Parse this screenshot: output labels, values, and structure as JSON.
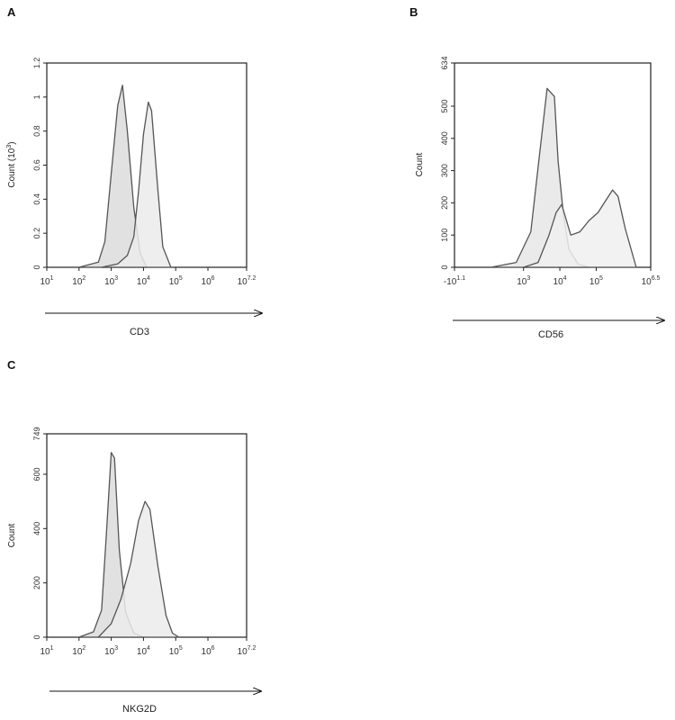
{
  "chart_data": [
    {
      "type": "area",
      "panel_letter": "A",
      "ylabel": "Count (10",
      "ylabel_sup": "3",
      "ylabel_close": ")",
      "xlabel": "CD3",
      "x_scale": "log",
      "xlim_log10": [
        1,
        7.2
      ],
      "ylim": [
        0,
        1.2
      ],
      "x_tick_labels": [
        {
          "pos": 1,
          "base": "10",
          "exp": "1"
        },
        {
          "pos": 2,
          "base": "10",
          "exp": "2"
        },
        {
          "pos": 3,
          "base": "10",
          "exp": "3"
        },
        {
          "pos": 4,
          "base": "10",
          "exp": "4"
        },
        {
          "pos": 5,
          "base": "10",
          "exp": "5"
        },
        {
          "pos": 6,
          "base": "10",
          "exp": "6"
        },
        {
          "pos": 7.2,
          "base": "10",
          "exp": "7.2"
        }
      ],
      "y_tick_labels": [
        {
          "pos": 0,
          "label": "0"
        },
        {
          "pos": 0.2,
          "label": "0.2"
        },
        {
          "pos": 0.4,
          "label": "0.4"
        },
        {
          "pos": 0.6,
          "label": "0.6"
        },
        {
          "pos": 0.8,
          "label": "0.8"
        },
        {
          "pos": 1,
          "label": "1"
        },
        {
          "pos": 1.2,
          "label": "1.2"
        }
      ],
      "series": [
        {
          "x": [
            2.0,
            2.6,
            2.8,
            3.0,
            3.2,
            3.35,
            3.5,
            3.7,
            3.9,
            4.1
          ],
          "y": [
            0,
            0.03,
            0.15,
            0.55,
            0.95,
            1.07,
            0.8,
            0.35,
            0.08,
            0
          ],
          "fill": "#dcdcdc"
        },
        {
          "x": [
            2.7,
            3.2,
            3.5,
            3.7,
            3.85,
            4.0,
            4.15,
            4.25,
            4.45,
            4.6,
            4.85
          ],
          "y": [
            0,
            0.02,
            0.07,
            0.18,
            0.45,
            0.78,
            0.97,
            0.92,
            0.45,
            0.12,
            0
          ],
          "fill": "#ebebeb"
        }
      ]
    },
    {
      "type": "area",
      "panel_letter": "B",
      "ylabel": "Count",
      "xlabel": "CD56",
      "x_scale": "log",
      "xlim_log10": [
        1.1,
        6.5
      ],
      "ylim": [
        0,
        634
      ],
      "x_tick_labels": [
        {
          "pos": 1.1,
          "base": "-10",
          "exp": "1.1"
        },
        {
          "pos": 3,
          "base": "10",
          "exp": "3"
        },
        {
          "pos": 4,
          "base": "10",
          "exp": "4"
        },
        {
          "pos": 5,
          "base": "10",
          "exp": "5"
        },
        {
          "pos": 6.5,
          "base": "10",
          "exp": "6.5"
        }
      ],
      "y_tick_labels": [
        {
          "pos": 0,
          "label": "0"
        },
        {
          "pos": 100,
          "label": "100"
        },
        {
          "pos": 200,
          "label": "200"
        },
        {
          "pos": 300,
          "label": "300"
        },
        {
          "pos": 400,
          "label": "400"
        },
        {
          "pos": 500,
          "label": "500"
        },
        {
          "pos": 634,
          "label": "634"
        }
      ],
      "series": [
        {
          "x": [
            2.1,
            2.8,
            3.2,
            3.45,
            3.65,
            3.85,
            3.95,
            4.1,
            4.25,
            4.5,
            4.8
          ],
          "y": [
            0,
            15,
            110,
            360,
            555,
            530,
            330,
            160,
            55,
            10,
            0
          ],
          "fill": "#e6e6e6"
        },
        {
          "x": [
            3.0,
            3.4,
            3.7,
            3.9,
            4.05,
            4.3,
            4.55,
            4.8,
            5.05,
            5.25,
            5.45,
            5.6,
            5.8,
            6.1
          ],
          "y": [
            0,
            15,
            100,
            170,
            195,
            100,
            110,
            145,
            170,
            205,
            240,
            220,
            120,
            0
          ],
          "fill": "#f0f0f0"
        }
      ]
    },
    {
      "type": "area",
      "panel_letter": "C",
      "ylabel": "Count",
      "xlabel": "NKG2D",
      "x_scale": "log",
      "xlim_log10": [
        1,
        7.2
      ],
      "ylim": [
        0,
        749
      ],
      "x_tick_labels": [
        {
          "pos": 1,
          "base": "10",
          "exp": "1"
        },
        {
          "pos": 2,
          "base": "10",
          "exp": "2"
        },
        {
          "pos": 3,
          "base": "10",
          "exp": "3"
        },
        {
          "pos": 4,
          "base": "10",
          "exp": "4"
        },
        {
          "pos": 5,
          "base": "10",
          "exp": "5"
        },
        {
          "pos": 6,
          "base": "10",
          "exp": "6"
        },
        {
          "pos": 7.2,
          "base": "10",
          "exp": "7.2"
        }
      ],
      "y_tick_labels": [
        {
          "pos": 0,
          "label": "0"
        },
        {
          "pos": 200,
          "label": "200"
        },
        {
          "pos": 400,
          "label": "400"
        },
        {
          "pos": 600,
          "label": "600"
        },
        {
          "pos": 749,
          "label": "749"
        }
      ],
      "series": [
        {
          "x": [
            2.0,
            2.45,
            2.7,
            2.85,
            3.0,
            3.1,
            3.25,
            3.45,
            3.7,
            4.0
          ],
          "y": [
            0,
            20,
            100,
            380,
            680,
            660,
            320,
            90,
            15,
            0
          ],
          "fill": "#dcdcdc"
        },
        {
          "x": [
            2.6,
            3.0,
            3.3,
            3.6,
            3.85,
            4.05,
            4.2,
            4.45,
            4.7,
            4.9,
            5.1
          ],
          "y": [
            0,
            50,
            140,
            270,
            430,
            500,
            470,
            260,
            80,
            15,
            0
          ],
          "fill": "#ebebeb"
        }
      ]
    }
  ]
}
